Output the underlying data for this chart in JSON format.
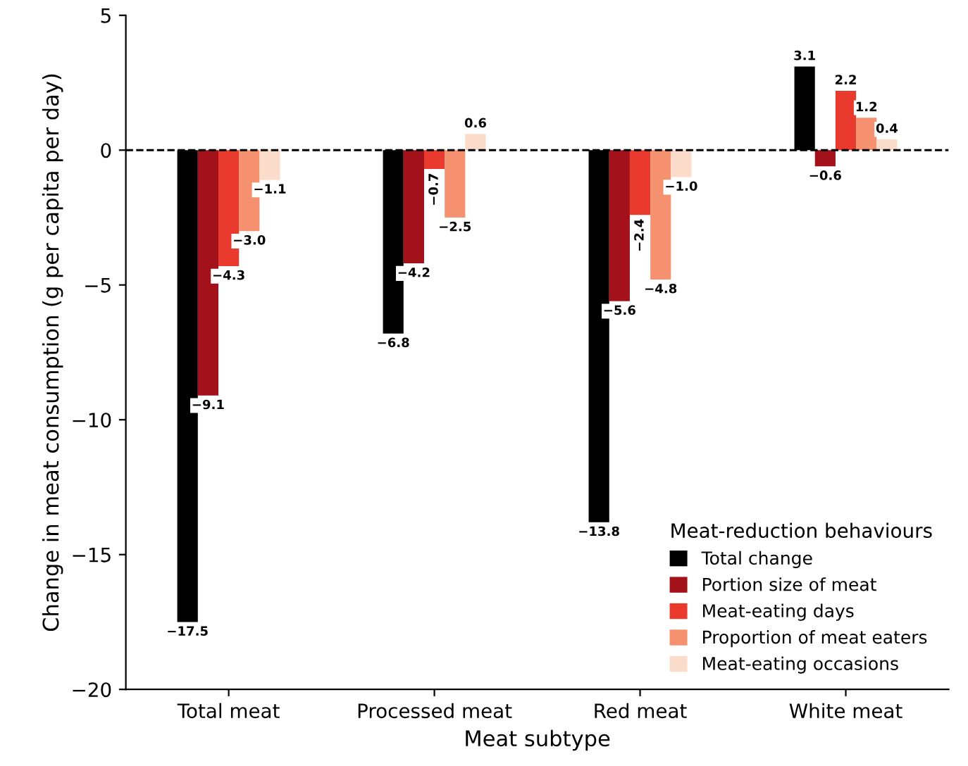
{
  "chart_data": {
    "type": "bar",
    "xlabel": "Meat subtype",
    "ylabel": "Change in meat consumption (g per capita per day)",
    "legend_title": "Meat-reduction behaviours",
    "categories": [
      "Total meat",
      "Processed meat",
      "Red meat",
      "White meat"
    ],
    "series": [
      {
        "name": "Total change",
        "color": "#000000",
        "values": [
          -17.5,
          -6.8,
          -13.8,
          3.1
        ],
        "value_labels": [
          "−17.5",
          "−6.8",
          "−13.8",
          "3.1"
        ]
      },
      {
        "name": "Portion size of meat",
        "color": "#a3111b",
        "values": [
          -9.1,
          -4.2,
          -5.6,
          -0.6
        ],
        "value_labels": [
          "−9.1",
          "−4.2",
          "−5.6",
          "−0.6"
        ]
      },
      {
        "name": "Meat-eating days",
        "color": "#ea3a2e",
        "values": [
          -4.3,
          -0.7,
          -2.4,
          2.2
        ],
        "value_labels": [
          "−4.3",
          "−0.7",
          "−2.4",
          "2.2"
        ]
      },
      {
        "name": "Proportion of meat eaters",
        "color": "#f6916f",
        "values": [
          -3.0,
          -2.5,
          -4.8,
          1.2
        ],
        "value_labels": [
          "−3.0",
          "−2.5",
          "−4.8",
          "1.2"
        ]
      },
      {
        "name": "Meat-eating occasions",
        "color": "#fbdccb",
        "values": [
          -1.1,
          0.6,
          -1.0,
          0.4
        ],
        "value_labels": [
          "−1.1",
          "0.6",
          "−1.0",
          "0.4"
        ]
      }
    ],
    "ylim": [
      -20,
      5
    ],
    "yticks": [
      {
        "value": -20,
        "label": "−20"
      },
      {
        "value": -15,
        "label": "−15"
      },
      {
        "value": -10,
        "label": "−10"
      },
      {
        "value": -5,
        "label": "−5"
      },
      0,
      5
    ],
    "ref_lines": [
      {
        "axis": "y",
        "value": 0,
        "color": "#000000",
        "line_style": "dashed"
      }
    ],
    "legend": "bottom right",
    "grid": false
  }
}
